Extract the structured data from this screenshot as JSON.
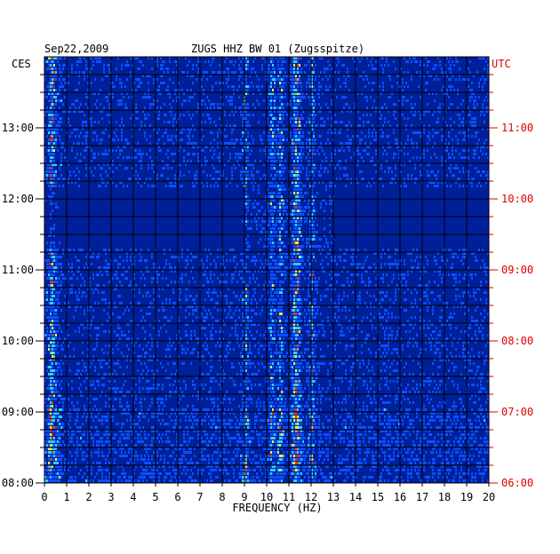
{
  "chart_data": {
    "type": "heatmap",
    "header": {
      "date": "Sep22,2009",
      "station": "ZUGS HHZ BW 01 (Zugsspitze)"
    },
    "left_timezone": "CES",
    "right_timezone": "UTC",
    "xlabel": "FREQUENCY (HZ)",
    "xlim": [
      0,
      20
    ],
    "x_ticks": [
      "0",
      "1",
      "2",
      "3",
      "4",
      "5",
      "6",
      "7",
      "8",
      "9",
      "10",
      "11",
      "12",
      "13",
      "14",
      "15",
      "16",
      "17",
      "18",
      "19",
      "20"
    ],
    "left_ticks": [
      "13:00",
      "12:00",
      "11:00",
      "10:00",
      "09:00",
      "08:00"
    ],
    "right_ticks": [
      "11:00",
      "10:00",
      "09:00",
      "08:00",
      "07:00",
      "06:00"
    ],
    "time_range_ces": [
      "08:00",
      "14:00"
    ],
    "colors": {
      "background_low": "#00209a",
      "mid": "#0a50ff",
      "high_cyan": "#33ccff",
      "high_yellow": "#ffee33",
      "peak_red": "#ff3300",
      "axis": "#000000",
      "utc_label": "#dd0000"
    },
    "dominant_bands_hz": [
      0.3,
      9.0,
      10.2,
      10.6,
      11.2,
      11.4,
      12.0
    ]
  }
}
